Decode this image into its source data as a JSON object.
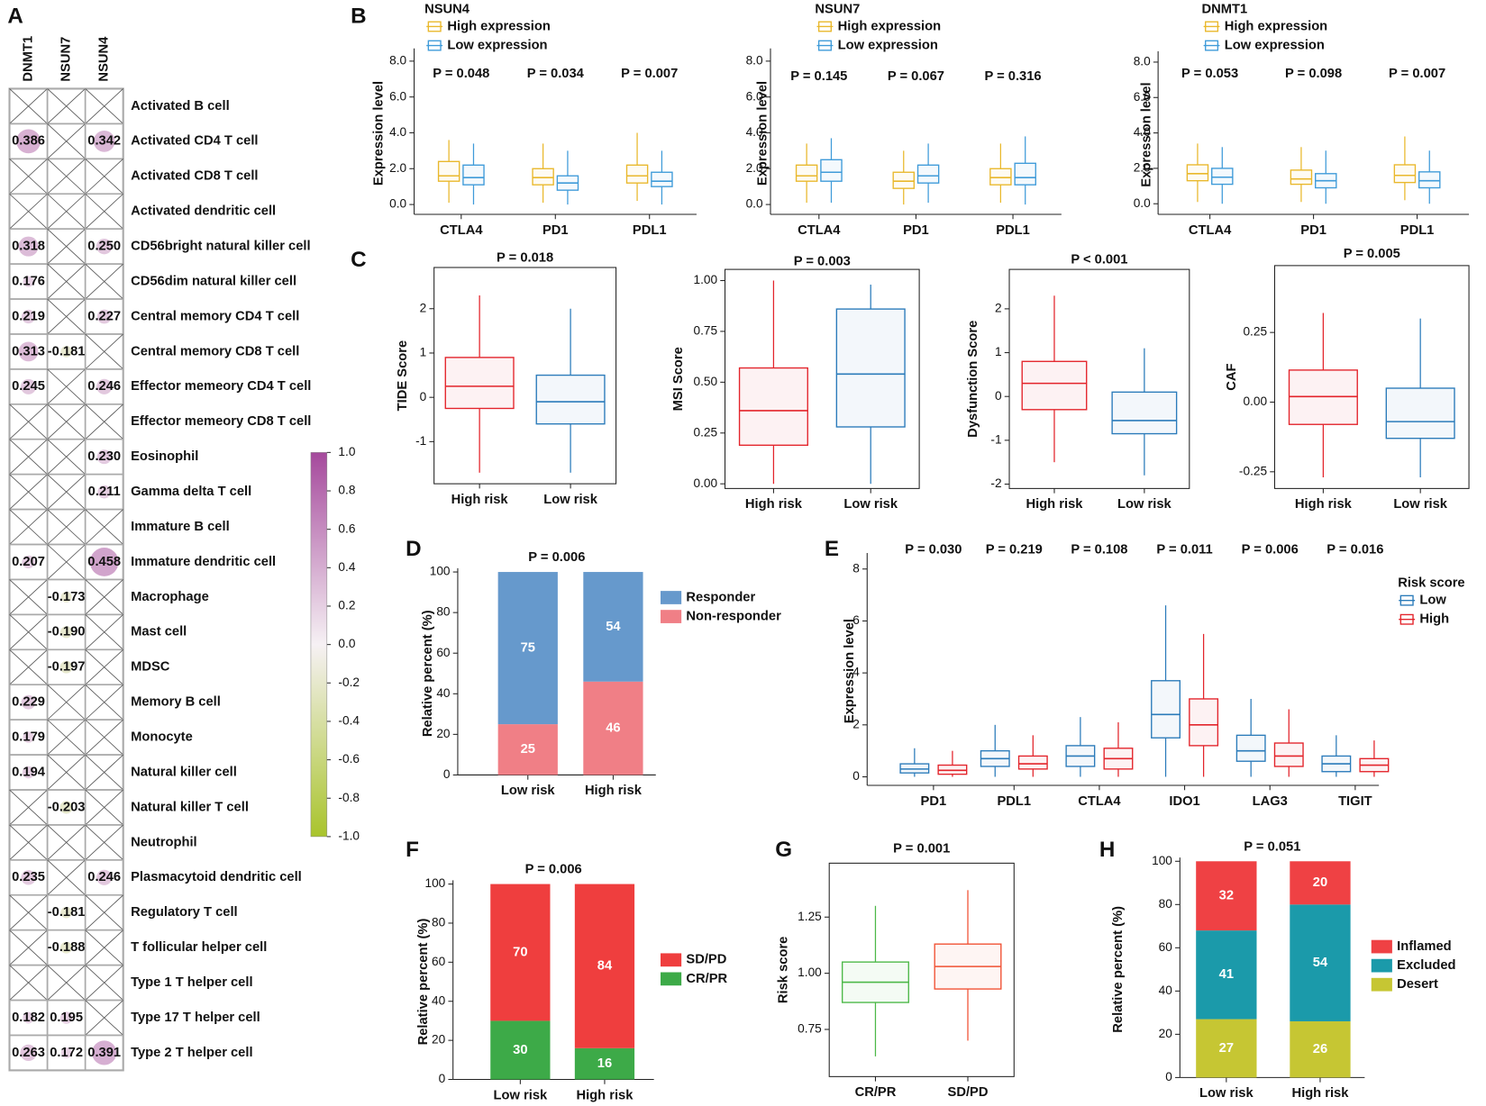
{
  "panel_labels": [
    "A",
    "B",
    "C",
    "D",
    "E",
    "F",
    "G",
    "H"
  ],
  "chart_data": [
    {
      "type": "heatmap",
      "columns": [
        "DNMT1",
        "NSUN7",
        "NSUN4"
      ],
      "rows": [
        "Activated B cell",
        "Activated CD4 T cell",
        "Activated CD8 T cell",
        "Activated dendritic cell",
        "CD56bright natural killer cell",
        "CD56dim natural killer cell",
        "Central memory CD4 T cell",
        "Central memory CD8 T cell",
        "Effector memeory CD4 T cell",
        "Effector memeory CD8 T cell",
        "Eosinophil",
        "Gamma delta T cell",
        "Immature  B cell",
        "Immature dendritic cell",
        "Macrophage",
        "Mast cell",
        "MDSC",
        "Memory B cell",
        "Monocyte",
        "Natural killer cell",
        "Natural killer T cell",
        "Neutrophil",
        "Plasmacytoid dendritic cell",
        "Regulatory T cell",
        "T follicular helper cell",
        "Type 1 T helper cell",
        "Type 17 T helper cell",
        "Type 2 T helper cell"
      ],
      "values": [
        [
          null,
          null,
          null
        ],
        [
          0.386,
          null,
          0.342
        ],
        [
          null,
          null,
          null
        ],
        [
          null,
          null,
          null
        ],
        [
          0.318,
          null,
          0.25
        ],
        [
          0.176,
          null,
          null
        ],
        [
          0.219,
          null,
          0.227
        ],
        [
          0.313,
          -0.181,
          null
        ],
        [
          0.245,
          null,
          0.246
        ],
        [
          null,
          null,
          null
        ],
        [
          null,
          null,
          0.23
        ],
        [
          null,
          null,
          0.211
        ],
        [
          null,
          null,
          null
        ],
        [
          0.207,
          null,
          0.458
        ],
        [
          null,
          -0.173,
          null
        ],
        [
          null,
          -0.19,
          null
        ],
        [
          null,
          -0.197,
          null
        ],
        [
          0.229,
          null,
          null
        ],
        [
          0.179,
          null,
          null
        ],
        [
          0.194,
          null,
          null
        ],
        [
          null,
          -0.203,
          null
        ],
        [
          null,
          null,
          null
        ],
        [
          0.235,
          null,
          0.246
        ],
        [
          null,
          -0.181,
          null
        ],
        [
          null,
          -0.188,
          null
        ],
        [
          null,
          null,
          null
        ],
        [
          0.182,
          0.195,
          null
        ],
        [
          0.263,
          0.172,
          0.391
        ]
      ],
      "value_labels": [
        [
          null,
          null,
          null
        ],
        [
          "0.386",
          null,
          "0.342"
        ],
        [
          null,
          null,
          null
        ],
        [
          null,
          null,
          null
        ],
        [
          "0.318",
          null,
          "0.250"
        ],
        [
          "0.176",
          null,
          null
        ],
        [
          "0.219",
          null,
          "0.227"
        ],
        [
          "0.313",
          "-0.181",
          null
        ],
        [
          "0.245",
          null,
          "0.246"
        ],
        [
          null,
          null,
          null
        ],
        [
          null,
          null,
          "0.230"
        ],
        [
          null,
          null,
          "0.211"
        ],
        [
          null,
          null,
          null
        ],
        [
          "0.207",
          null,
          "0.458"
        ],
        [
          null,
          "-0.173",
          null
        ],
        [
          null,
          "-0.190",
          null
        ],
        [
          null,
          "-0.197",
          null
        ],
        [
          "0.229",
          null,
          null
        ],
        [
          "0.179",
          null,
          null
        ],
        [
          "0.194",
          null,
          null
        ],
        [
          null,
          "-0.203",
          null
        ],
        [
          null,
          null,
          null
        ],
        [
          "0.235",
          null,
          "0.246"
        ],
        [
          null,
          "-0.181",
          null
        ],
        [
          null,
          "-0.188",
          null
        ],
        [
          null,
          null,
          null
        ],
        [
          "0.182",
          "0.195",
          null
        ],
        [
          "0.263",
          "0.172",
          "0.391"
        ]
      ],
      "colormap": [
        "#a9c42c",
        "#f6f1f4",
        "#a5499c"
      ],
      "clim": [
        -1,
        1
      ],
      "colorbar_ticks": [
        {
          "value": 1,
          "label": "1.0"
        },
        {
          "value": 0.8,
          "label": "0.8"
        },
        {
          "value": 0.6,
          "label": "0.6"
        },
        {
          "value": 0.4,
          "label": "0.4"
        },
        {
          "value": 0.2,
          "label": "0.2"
        },
        {
          "value": 0,
          "label": "0.0"
        },
        {
          "value": -0.2,
          "label": "-0.2"
        },
        {
          "value": -0.4,
          "label": "-0.4"
        },
        {
          "value": -0.6,
          "label": "-0.6"
        },
        {
          "value": -0.8,
          "label": "-0.8"
        },
        {
          "value": -1,
          "label": "-1.0"
        }
      ]
    },
    {
      "type": "box",
      "title": "NSUN4",
      "ylabel": "Expression level",
      "categories": [
        "CTLA4",
        "PD1",
        "PDL1"
      ],
      "annotations": [
        "P = 0.048",
        "P = 0.034",
        "P = 0.007"
      ],
      "series": [
        {
          "name": "High expression",
          "color": "#e9b82c",
          "values": [
            [
              0.1,
              1.3,
              1.6,
              2.4,
              3.6
            ],
            [
              0.1,
              1.1,
              1.5,
              2.0,
              3.4
            ],
            [
              0.2,
              1.2,
              1.6,
              2.2,
              4.0
            ]
          ]
        },
        {
          "name": "Low expression",
          "color": "#3f9bd9",
          "values": [
            [
              0,
              1.1,
              1.5,
              2.2,
              3.4
            ],
            [
              0,
              0.8,
              1.2,
              1.6,
              3.0
            ],
            [
              0,
              1.0,
              1.3,
              1.8,
              3.0
            ]
          ]
        }
      ],
      "ylim": [
        -0.55,
        8.5
      ],
      "yticks": [
        {
          "value": 0,
          "label": "0.0"
        },
        {
          "value": 2,
          "label": "2.0"
        },
        {
          "value": 4,
          "label": "4.0"
        },
        {
          "value": 6,
          "label": "6.0"
        },
        {
          "value": 8,
          "label": "8.0"
        }
      ]
    },
    {
      "type": "box",
      "title": "NSUN7",
      "ylabel": "Expression level",
      "categories": [
        "CTLA4",
        "PD1",
        "PDL1"
      ],
      "annotations": [
        "P = 0.145",
        "P = 0.067",
        "P = 0.316"
      ],
      "series": [
        {
          "name": "High expression",
          "color": "#e9b82c",
          "values": [
            [
              0.1,
              1.3,
              1.6,
              2.2,
              3.4
            ],
            [
              0,
              0.9,
              1.3,
              1.8,
              3.0
            ],
            [
              0.1,
              1.1,
              1.5,
              2.0,
              3.4
            ]
          ]
        },
        {
          "name": "Low expression",
          "color": "#3f9bd9",
          "values": [
            [
              0.1,
              1.3,
              1.8,
              2.5,
              3.7
            ],
            [
              0.1,
              1.2,
              1.6,
              2.2,
              3.4
            ],
            [
              0,
              1.1,
              1.5,
              2.3,
              3.8
            ]
          ]
        }
      ],
      "ylim": [
        -0.55,
        8.5
      ],
      "yticks": [
        {
          "value": 0,
          "label": "0.0"
        },
        {
          "value": 2,
          "label": "2.0"
        },
        {
          "value": 4,
          "label": "4.0"
        },
        {
          "value": 6,
          "label": "6.0"
        },
        {
          "value": 8,
          "label": "8.0"
        }
      ]
    },
    {
      "type": "box",
      "title": "DNMT1",
      "ylabel": "Expression level",
      "categories": [
        "CTLA4",
        "PD1",
        "PDL1"
      ],
      "annotations": [
        "P = 0.053",
        "P = 0.098",
        "P = 0.007"
      ],
      "series": [
        {
          "name": "High expression",
          "color": "#e9b82c",
          "values": [
            [
              0.1,
              1.3,
              1.7,
              2.2,
              3.4
            ],
            [
              0.1,
              1.1,
              1.4,
              1.9,
              3.2
            ],
            [
              0.2,
              1.2,
              1.6,
              2.2,
              3.8
            ]
          ]
        },
        {
          "name": "Low expression",
          "color": "#3f9bd9",
          "values": [
            [
              0,
              1.1,
              1.5,
              2.0,
              3.2
            ],
            [
              0,
              0.9,
              1.3,
              1.7,
              3.0
            ],
            [
              0,
              0.9,
              1.3,
              1.8,
              3.0
            ]
          ]
        }
      ],
      "ylim": [
        -0.6,
        8.4
      ],
      "yticks": [
        {
          "value": 0,
          "label": "0.0"
        },
        {
          "value": 2,
          "label": "2.0"
        },
        {
          "value": 4,
          "label": "4.0"
        },
        {
          "value": 6,
          "label": "6.0"
        },
        {
          "value": 8,
          "label": "8.0"
        }
      ]
    },
    {
      "type": "box",
      "title": "P = 0.018",
      "ylabel": "TIDE Score",
      "categories": [
        "High risk",
        "Low risk"
      ],
      "colors": [
        "#e3242b",
        "#2b7bba"
      ],
      "values": [
        [
          -1.7,
          -0.25,
          0.25,
          0.9,
          2.3
        ],
        [
          -1.7,
          -0.6,
          -0.1,
          0.5,
          2.0
        ]
      ],
      "ylim": [
        -1.95,
        2.93
      ],
      "yticks": [
        -1,
        0,
        1,
        2
      ]
    },
    {
      "type": "box",
      "title": "P = 0.003",
      "ylabel": "MSI Score",
      "categories": [
        "High risk",
        "Low risk"
      ],
      "colors": [
        "#e3242b",
        "#2b7bba"
      ],
      "values": [
        [
          0,
          0.19,
          0.36,
          0.57,
          1.0
        ],
        [
          0,
          0.28,
          0.54,
          0.86,
          0.98
        ]
      ],
      "ylim": [
        -0.023,
        1.055
      ],
      "yticks": [
        {
          "value": 0,
          "label": "0.00"
        },
        {
          "value": 0.25,
          "label": "0.25"
        },
        {
          "value": 0.5,
          "label": "0.50"
        },
        {
          "value": 0.75,
          "label": "0.75"
        },
        {
          "value": 1,
          "label": "1.00"
        }
      ]
    },
    {
      "type": "box",
      "title": "P < 0.001",
      "ylabel": "Dysfunction Score",
      "categories": [
        "High risk",
        "Low risk"
      ],
      "colors": [
        "#e3242b",
        "#2b7bba"
      ],
      "values": [
        [
          -1.5,
          -0.3,
          0.3,
          0.8,
          2.3
        ],
        [
          -1.8,
          -0.85,
          -0.55,
          0.1,
          1.1
        ]
      ],
      "ylim": [
        -2.1,
        2.9
      ],
      "yticks": [
        -2,
        -1,
        0,
        1,
        2
      ]
    },
    {
      "type": "box",
      "title": "P = 0.005",
      "ylabel": "CAF",
      "categories": [
        "High risk",
        "Low risk"
      ],
      "colors": [
        "#e3242b",
        "#2b7bba"
      ],
      "values": [
        [
          -0.27,
          -0.08,
          0.02,
          0.115,
          0.32
        ],
        [
          -0.27,
          -0.13,
          -0.07,
          0.05,
          0.3
        ]
      ],
      "ylim": [
        -0.31,
        0.49
      ],
      "yticks": [
        {
          "value": -0.25,
          "label": "-0.25"
        },
        {
          "value": 0,
          "label": "0.00"
        },
        {
          "value": 0.25,
          "label": "0.25"
        }
      ]
    },
    {
      "type": "stacked_bar",
      "title": "P = 0.006",
      "ylabel": "Relative percent  (%)",
      "categories": [
        "Low risk",
        "High risk"
      ],
      "series": [
        {
          "name": "Non-responder",
          "color": "#f07f86",
          "values": [
            25,
            46
          ]
        },
        {
          "name": "Responder",
          "color": "#6699cc",
          "values": [
            75,
            54
          ]
        }
      ],
      "ylim": [
        0,
        100
      ],
      "yticks": [
        0,
        20,
        40,
        60,
        80,
        100
      ]
    },
    {
      "type": "box",
      "ylabel": "Expression level",
      "legend_title": "Risk score",
      "categories": [
        "PD1",
        "PDL1",
        "CTLA4",
        "IDO1",
        "LAG3",
        "TIGIT"
      ],
      "annotations": [
        "P = 0.030",
        "P = 0.219",
        "P = 0.108",
        "P = 0.011",
        "P = 0.006",
        "P = 0.016"
      ],
      "series": [
        {
          "name": "Low",
          "color": "#2b7bba",
          "values": [
            [
              0,
              0.15,
              0.3,
              0.5,
              1.1
            ],
            [
              0,
              0.4,
              0.7,
              1.0,
              2.0
            ],
            [
              0,
              0.4,
              0.8,
              1.2,
              2.3
            ],
            [
              0,
              1.5,
              2.4,
              3.7,
              6.6
            ],
            [
              0,
              0.6,
              1.0,
              1.6,
              3.0
            ],
            [
              0,
              0.2,
              0.5,
              0.8,
              1.6
            ]
          ]
        },
        {
          "name": "High",
          "color": "#e3242b",
          "values": [
            [
              0,
              0.1,
              0.25,
              0.45,
              1.0
            ],
            [
              0,
              0.3,
              0.5,
              0.8,
              1.6
            ],
            [
              0,
              0.3,
              0.7,
              1.1,
              2.1
            ],
            [
              0,
              1.2,
              2.0,
              3.0,
              5.5
            ],
            [
              0,
              0.4,
              0.8,
              1.3,
              2.6
            ],
            [
              0,
              0.2,
              0.45,
              0.7,
              1.4
            ]
          ]
        }
      ],
      "ylim": [
        -0.33,
        8.47
      ],
      "yticks": [
        0,
        2,
        4,
        6,
        8
      ]
    },
    {
      "type": "stacked_bar",
      "title": "P = 0.006",
      "ylabel": "Relative percent  (%)",
      "categories": [
        "Low risk",
        "High risk"
      ],
      "series": [
        {
          "name": "CR/PR",
          "color": "#3daa48",
          "values": [
            30,
            16
          ]
        },
        {
          "name": "SD/PD",
          "color": "#ef3e3e",
          "values": [
            70,
            84
          ]
        }
      ],
      "ylim": [
        0,
        100
      ],
      "yticks": [
        0,
        20,
        40,
        60,
        80,
        100
      ]
    },
    {
      "type": "box",
      "title": "P = 0.001",
      "ylabel": "Risk score",
      "categories": [
        "CR/PR",
        "SD/PD"
      ],
      "colors": [
        "#4cb848",
        "#f05133"
      ],
      "values": [
        [
          0.63,
          0.87,
          0.96,
          1.05,
          1.3
        ],
        [
          0.7,
          0.93,
          1.03,
          1.13,
          1.37
        ]
      ],
      "ylim": [
        0.54,
        1.49
      ],
      "yticks": [
        {
          "value": 0.75,
          "label": "0.75"
        },
        {
          "value": 1,
          "label": "1.00"
        },
        {
          "value": 1.25,
          "label": "1.25"
        }
      ]
    },
    {
      "type": "stacked_bar",
      "title": "P = 0.051",
      "ylabel": "Relative percent  (%)",
      "categories": [
        "Low risk",
        "High risk"
      ],
      "series": [
        {
          "name": "Desert",
          "color": "#c6c633",
          "values": [
            27,
            26
          ]
        },
        {
          "name": "Excluded",
          "color": "#1b9aaa",
          "values": [
            41,
            54
          ]
        },
        {
          "name": "Inflamed",
          "color": "#ef4144",
          "values": [
            32,
            20
          ]
        }
      ],
      "ylim": [
        0,
        100
      ],
      "yticks": [
        0,
        20,
        40,
        60,
        80,
        100
      ]
    }
  ]
}
